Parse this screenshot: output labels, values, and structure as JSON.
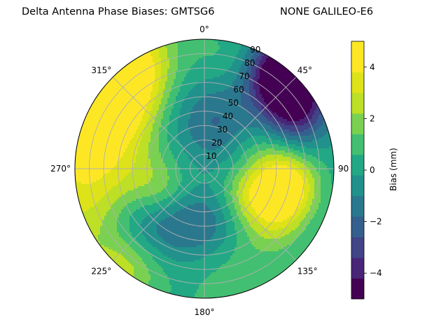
{
  "chart_data": {
    "type": "heatmap",
    "projection": "polar",
    "title": "Delta Antenna Phase Biases: GMTSG6",
    "subtitle": "NONE GALILEO-E6",
    "colorbar_label": "Bias (mm)",
    "colormap": "viridis",
    "vmin": -5,
    "vmax": 5,
    "levels": [
      -5,
      -4.2,
      -3.4,
      -2.6,
      -1.8,
      -1.0,
      -0.2,
      0.6,
      1.4,
      2.2,
      3.0,
      3.8,
      5
    ],
    "colorbar_ticks": [
      {
        "v": -4,
        "t": "−4"
      },
      {
        "v": -2,
        "t": "−2"
      },
      {
        "v": 0,
        "t": "0"
      },
      {
        "v": 2,
        "t": "2"
      },
      {
        "v": 4,
        "t": "4"
      }
    ],
    "theta_direction": "clockwise",
    "theta_zero": "N",
    "angle_ticks": [
      {
        "deg": 0,
        "t": "0°"
      },
      {
        "deg": 45,
        "t": "45°"
      },
      {
        "deg": 90,
        "t": "90"
      },
      {
        "deg": 135,
        "t": "135°"
      },
      {
        "deg": 180,
        "t": "180°"
      },
      {
        "deg": 225,
        "t": "225°"
      },
      {
        "deg": 270,
        "t": "270°"
      },
      {
        "deg": 315,
        "t": "315°"
      }
    ],
    "radial_ticks": [
      10,
      20,
      30,
      40,
      50,
      60,
      70,
      80,
      90
    ],
    "radial_tick_labels": [
      "10",
      "20",
      "30",
      "40",
      "50",
      "60",
      "70",
      "80",
      "90"
    ],
    "rmax": 90,
    "grid": true,
    "features": [
      {
        "az": 315,
        "zen": 88,
        "amp": 6.5,
        "saz": 22,
        "szen": 14
      },
      {
        "az": 300,
        "zen": 75,
        "amp": 1.8,
        "saz": 40,
        "szen": 16
      },
      {
        "az": 258,
        "zen": 80,
        "amp": 3.0,
        "saz": 35,
        "szen": 12
      },
      {
        "az": 42,
        "zen": 86,
        "amp": -7.5,
        "saz": 14,
        "szen": 9
      },
      {
        "az": 62,
        "zen": 70,
        "amp": -3.5,
        "saz": 12,
        "szen": 14
      },
      {
        "az": 103,
        "zen": 58,
        "amp": 4.2,
        "saz": 13,
        "szen": 13
      },
      {
        "az": 75,
        "zen": 50,
        "amp": 2.0,
        "saz": 18,
        "szen": 18
      },
      {
        "az": 125,
        "zen": 58,
        "amp": 2.4,
        "saz": 14,
        "szen": 14
      },
      {
        "az": 120,
        "zen": 35,
        "amp": 1.6,
        "saz": 20,
        "szen": 10
      },
      {
        "az": 332,
        "zen": 45,
        "amp": -2.6,
        "saz": 30,
        "szen": 28
      },
      {
        "az": 225,
        "zen": 55,
        "amp": -3.2,
        "saz": 22,
        "szen": 18
      },
      {
        "az": 245,
        "zen": 35,
        "amp": 1.6,
        "saz": 25,
        "szen": 10
      },
      {
        "az": 218,
        "zen": 85,
        "amp": 2.4,
        "saz": 14,
        "szen": 10
      },
      {
        "az": 180,
        "zen": 38,
        "amp": -1.6,
        "saz": 25,
        "szen": 12
      },
      {
        "az": 25,
        "zen": 32,
        "amp": -1.2,
        "saz": 25,
        "szen": 18
      },
      {
        "az": 10,
        "zen": 78,
        "amp": 0.8,
        "saz": 12,
        "szen": 10
      },
      {
        "az": 162,
        "zen": 86,
        "amp": 1.0,
        "saz": 25,
        "szen": 8
      }
    ]
  }
}
